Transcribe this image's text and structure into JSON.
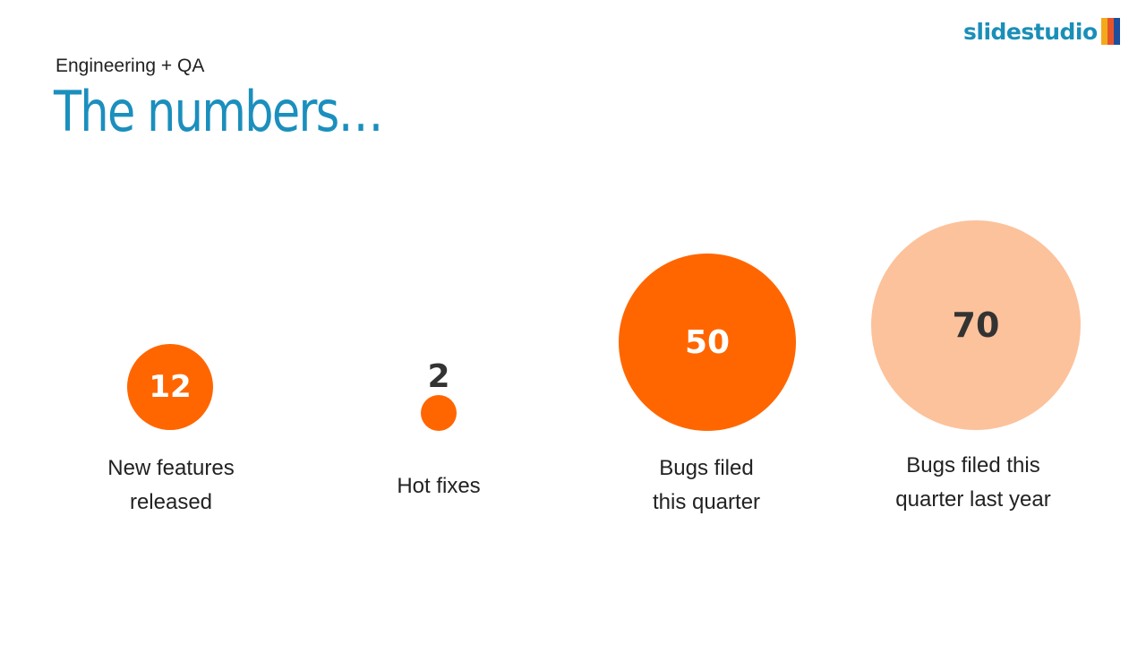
{
  "logo": {
    "text": "slidestudio",
    "colors": [
      "#f2a91c",
      "#e8542a",
      "#1d4f9c"
    ]
  },
  "subtitle": "Engineering + QA",
  "title": "The numbers…",
  "colors": {
    "accent": "#ff6600",
    "light": "#fcc29c",
    "text": "#333333"
  },
  "stats": [
    {
      "value": "12",
      "label1": "New features",
      "label2": "released"
    },
    {
      "value": "2",
      "label1": "Hot fixes",
      "label2": ""
    },
    {
      "value": "50",
      "label1": "Bugs filed",
      "label2": "this quarter"
    },
    {
      "value": "70",
      "label1": "Bugs filed this",
      "label2": "quarter last year"
    }
  ]
}
